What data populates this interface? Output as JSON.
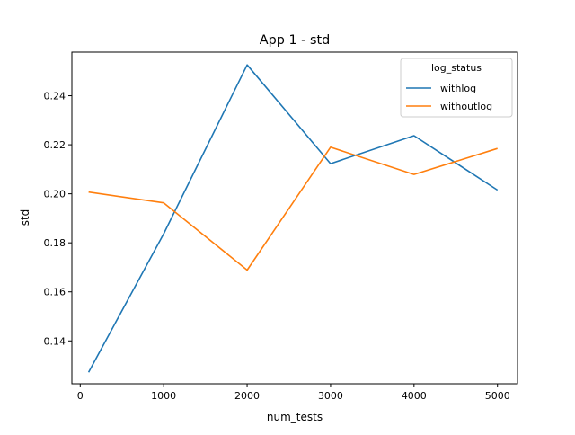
{
  "chart_data": {
    "type": "line",
    "title": "App 1 -  std",
    "xlabel": "num_tests",
    "ylabel": "std",
    "x": [
      100,
      1000,
      2000,
      3000,
      4000,
      5000
    ],
    "xlim": [
      -100,
      5240
    ],
    "ylim": [
      0.1225,
      0.2578
    ],
    "xticks": [
      0,
      1000,
      2000,
      3000,
      4000,
      5000
    ],
    "yticks": [
      0.14,
      0.16,
      0.18,
      0.2,
      0.22,
      0.24
    ],
    "grid": false,
    "legend": {
      "title": "log_status",
      "position": "top-right"
    },
    "series": [
      {
        "name": "withlog",
        "color": "#1f77b4",
        "values": [
          0.1272,
          0.1837,
          0.2526,
          0.2123,
          0.2237,
          0.2015
        ]
      },
      {
        "name": "withoutlog",
        "color": "#ff7f0e",
        "values": [
          0.2007,
          0.1963,
          0.1689,
          0.219,
          0.2079,
          0.2185
        ]
      }
    ]
  }
}
